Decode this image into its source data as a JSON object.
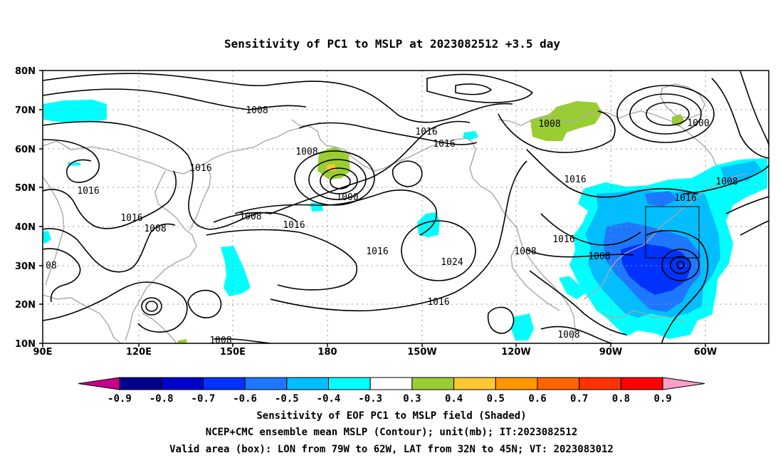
{
  "title": "Sensitivity of PC1 to MSLP at 2023082512 +3.5 day",
  "map": {
    "lat_labels": [
      "80N",
      "70N",
      "60N",
      "50N",
      "40N",
      "30N",
      "20N",
      "10N"
    ],
    "lon_labels": [
      "90E",
      "120E",
      "150E",
      "180",
      "150W",
      "120W",
      "90W",
      "60W"
    ],
    "contour_labels": [
      "1008",
      "1016",
      "1016",
      "1016",
      "1008",
      "1016",
      "1008",
      "1008",
      "1000",
      "1008",
      "1016",
      "1016",
      "1024",
      "1016",
      "1008",
      "1008",
      "1016",
      "1000",
      "1008",
      "1016",
      "1008",
      "1016",
      "1008",
      "08",
      "1016",
      "1008"
    ],
    "valid_box": {
      "lon_min": -79,
      "lon_max": -62,
      "lat_min": 32,
      "lat_max": 45
    }
  },
  "colorbar": {
    "labels": [
      "-0.9",
      "-0.8",
      "-0.7",
      "-0.6",
      "-0.5",
      "-0.4",
      "-0.3",
      "0.3",
      "0.4",
      "0.5",
      "0.6",
      "0.7",
      "0.8",
      "0.9"
    ],
    "colors": [
      "#00008c",
      "#0000cd",
      "#0032ff",
      "#1e78ff",
      "#00beff",
      "#00ffff",
      "#ffffff",
      "#9acd32",
      "#ffc832",
      "#ff9600",
      "#ff6400",
      "#ff3200",
      "#ff0000"
    ],
    "low_end_color": "#c8008c",
    "high_end_color": "#ff9ec8"
  },
  "footer": {
    "line1": "Sensitivity of EOF PC1 to MSLP field (Shaded)",
    "line2": "NCEP+CMC ensemble mean MSLP (Contour); unit(mb); IT:2023082512",
    "line3": "Valid area (box): LON from 79W to 62W, LAT from 32N to 45N; VT: 2023083012"
  }
}
